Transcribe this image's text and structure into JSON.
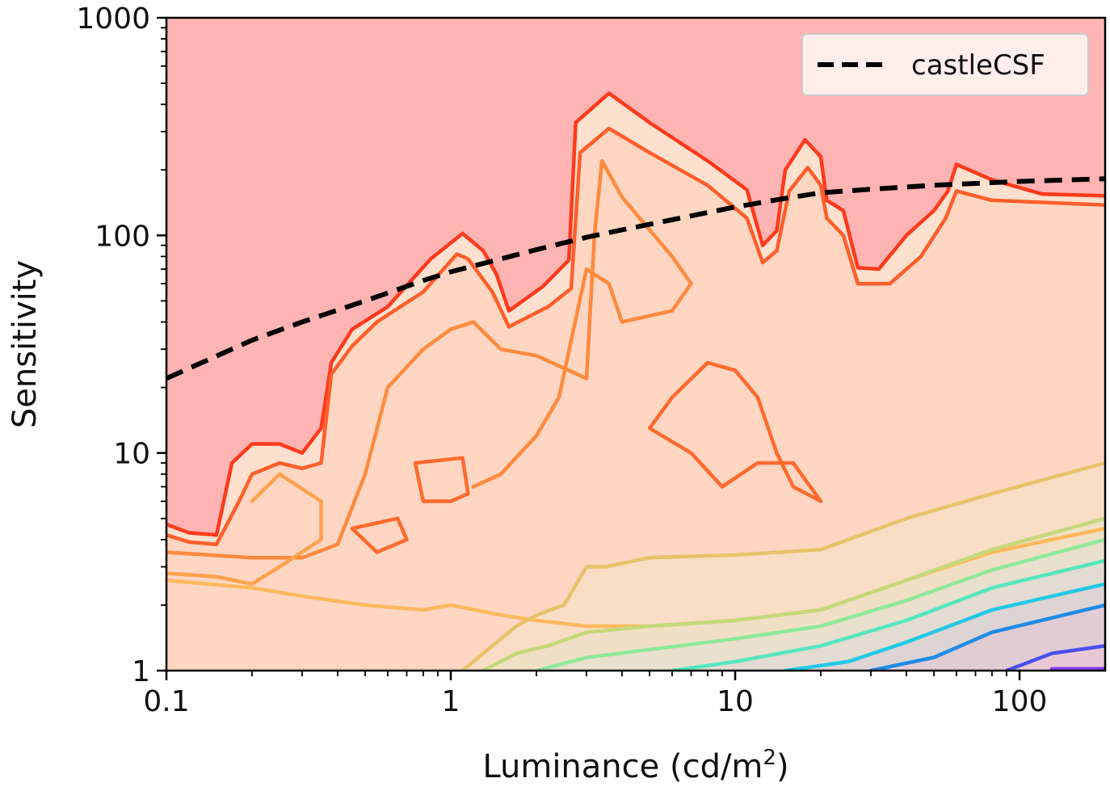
{
  "chart_data": {
    "type": "contour",
    "xlabel": "Luminance (cd/m",
    "xlabel_superscript": "2",
    "xlabel_suffix": ")",
    "ylabel": "Sensitivity",
    "xscale": "log",
    "yscale": "log",
    "xlim": [
      0.1,
      200
    ],
    "ylim": [
      1,
      1000
    ],
    "x_ticks": [
      {
        "value": 0.1,
        "label": "0.1"
      },
      {
        "value": 1,
        "label": "1"
      },
      {
        "value": 10,
        "label": "10"
      },
      {
        "value": 100,
        "label": "100"
      }
    ],
    "y_ticks": [
      {
        "value": 1,
        "label": "1"
      },
      {
        "value": 10,
        "label": "10"
      },
      {
        "value": 100,
        "label": "100"
      },
      {
        "value": 1000,
        "label": "1000"
      }
    ],
    "grid": false,
    "legend_position": "top-right",
    "series": [
      {
        "name": "castleCSF",
        "style": "dashed",
        "color": "#000000",
        "points": [
          [
            0.1,
            22
          ],
          [
            0.2,
            33
          ],
          [
            0.3,
            40
          ],
          [
            0.5,
            50
          ],
          [
            0.8,
            62
          ],
          [
            1,
            68
          ],
          [
            1.5,
            78
          ],
          [
            2,
            86
          ],
          [
            3,
            98
          ],
          [
            4,
            106
          ],
          [
            6,
            118
          ],
          [
            10,
            135
          ],
          [
            15,
            148
          ],
          [
            20,
            157
          ],
          [
            30,
            163
          ],
          [
            50,
            170
          ],
          [
            100,
            177
          ],
          [
            200,
            182
          ]
        ]
      }
    ],
    "contours": [
      {
        "color": "#ff3a1c",
        "points": [
          [
            0.1,
            4.7
          ],
          [
            0.12,
            4.3
          ],
          [
            0.15,
            4.2
          ],
          [
            0.17,
            9
          ],
          [
            0.2,
            11
          ],
          [
            0.25,
            11
          ],
          [
            0.3,
            10
          ],
          [
            0.35,
            13
          ],
          [
            0.38,
            26
          ],
          [
            0.45,
            37
          ],
          [
            0.6,
            47
          ],
          [
            0.85,
            78
          ],
          [
            1.1,
            102
          ],
          [
            1.3,
            85
          ],
          [
            1.45,
            66
          ],
          [
            1.6,
            45
          ],
          [
            2.1,
            58
          ],
          [
            2.6,
            77
          ],
          [
            2.75,
            330
          ],
          [
            3.6,
            450
          ],
          [
            5,
            330
          ],
          [
            8,
            220
          ],
          [
            11,
            162
          ],
          [
            12.5,
            90
          ],
          [
            14,
            105
          ],
          [
            15,
            200
          ],
          [
            17.6,
            275
          ],
          [
            20,
            230
          ],
          [
            21,
            145
          ],
          [
            24,
            130
          ],
          [
            27,
            71
          ],
          [
            32,
            70
          ],
          [
            40,
            100
          ],
          [
            50,
            130
          ],
          [
            56,
            160
          ],
          [
            60,
            212
          ],
          [
            80,
            180
          ],
          [
            120,
            155
          ],
          [
            200,
            152
          ]
        ]
      },
      {
        "color": "#ff5e2b",
        "points": [
          [
            0.1,
            4.2
          ],
          [
            0.12,
            3.9
          ],
          [
            0.15,
            3.8
          ],
          [
            0.18,
            6
          ],
          [
            0.2,
            8
          ],
          [
            0.25,
            9
          ],
          [
            0.3,
            8.5
          ],
          [
            0.35,
            9
          ],
          [
            0.38,
            23
          ],
          [
            0.45,
            31
          ],
          [
            0.55,
            40
          ],
          [
            0.8,
            55
          ],
          [
            1.05,
            82
          ],
          [
            1.15,
            78
          ],
          [
            1.4,
            55
          ],
          [
            1.6,
            38
          ],
          [
            2.2,
            47
          ],
          [
            2.65,
            57
          ],
          [
            2.85,
            240
          ],
          [
            3.6,
            310
          ],
          [
            5,
            240
          ],
          [
            8,
            170
          ],
          [
            11,
            120
          ],
          [
            12.5,
            75
          ],
          [
            14,
            85
          ],
          [
            15.5,
            160
          ],
          [
            18,
            205
          ],
          [
            20,
            170
          ],
          [
            21,
            120
          ],
          [
            24,
            100
          ],
          [
            27,
            60
          ],
          [
            35,
            60
          ],
          [
            45,
            80
          ],
          [
            55,
            120
          ],
          [
            60,
            160
          ],
          [
            80,
            145
          ],
          [
            200,
            138
          ]
        ]
      },
      {
        "color": "#ff8a3d",
        "points": [
          [
            0.1,
            3.5
          ],
          [
            0.2,
            3.3
          ],
          [
            0.3,
            3.3
          ],
          [
            0.4,
            3.8
          ],
          [
            0.5,
            8
          ],
          [
            0.6,
            20
          ],
          [
            0.8,
            30
          ],
          [
            1,
            37
          ],
          [
            1.2,
            40
          ],
          [
            1.5,
            30
          ],
          [
            2,
            28
          ],
          [
            3,
            22
          ],
          [
            3.2,
            100
          ],
          [
            3.4,
            220
          ],
          [
            4,
            150
          ],
          [
            6,
            80
          ],
          [
            7,
            60
          ],
          [
            6,
            45
          ],
          [
            4,
            40
          ],
          [
            3.6,
            60
          ],
          [
            3,
            70
          ],
          [
            2.4,
            18
          ],
          [
            2,
            12
          ],
          [
            1.5,
            8
          ],
          [
            1.2,
            7
          ]
        ]
      },
      {
        "color": "#ff6a2e",
        "points": [
          [
            6,
            18
          ],
          [
            8,
            26
          ],
          [
            10,
            24
          ],
          [
            12,
            18
          ],
          [
            14,
            10
          ],
          [
            16,
            7
          ],
          [
            20,
            6
          ],
          [
            16,
            9
          ],
          [
            12,
            9
          ],
          [
            9,
            7
          ],
          [
            7,
            10
          ],
          [
            5,
            13
          ],
          [
            6,
            18
          ]
        ]
      },
      {
        "color": "#ff6a2e",
        "points": [
          [
            0.75,
            9
          ],
          [
            1.1,
            9.5
          ],
          [
            1.15,
            6.5
          ],
          [
            1,
            6
          ],
          [
            0.8,
            6
          ],
          [
            0.75,
            9
          ]
        ]
      },
      {
        "color": "#ff6a2e",
        "points": [
          [
            0.45,
            4.5
          ],
          [
            0.65,
            5
          ],
          [
            0.7,
            4
          ],
          [
            0.55,
            3.5
          ],
          [
            0.45,
            4.5
          ]
        ]
      },
      {
        "color": "#ffa24d",
        "points": [
          [
            0.2,
            6
          ],
          [
            0.25,
            8
          ],
          [
            0.35,
            6
          ],
          [
            0.35,
            4
          ],
          [
            0.25,
            3
          ],
          [
            0.2,
            2.5
          ],
          [
            0.15,
            2.7
          ],
          [
            0.1,
            2.8
          ]
        ]
      },
      {
        "color": "#ffb85c",
        "points": [
          [
            0.1,
            2.6
          ],
          [
            0.2,
            2.4
          ],
          [
            0.3,
            2.2
          ],
          [
            0.5,
            2
          ],
          [
            0.8,
            1.9
          ],
          [
            1,
            2
          ],
          [
            1.5,
            1.8
          ],
          [
            2,
            1.7
          ],
          [
            3,
            1.6
          ],
          [
            5,
            1.6
          ],
          [
            10,
            1.7
          ],
          [
            20,
            1.9
          ],
          [
            40,
            2.6
          ],
          [
            80,
            3.5
          ],
          [
            200,
            4.5
          ]
        ]
      },
      {
        "color": "#e8c26a",
        "points": [
          [
            1.1,
            1
          ],
          [
            1.4,
            1.3
          ],
          [
            1.7,
            1.6
          ],
          [
            2,
            1.8
          ],
          [
            2.5,
            2
          ],
          [
            3,
            3
          ],
          [
            3.5,
            3
          ],
          [
            5,
            3.3
          ],
          [
            10,
            3.4
          ],
          [
            20,
            3.6
          ],
          [
            40,
            5
          ],
          [
            80,
            6.5
          ],
          [
            200,
            9
          ]
        ]
      },
      {
        "color": "#c4d97a",
        "points": [
          [
            1.3,
            1
          ],
          [
            1.7,
            1.2
          ],
          [
            2.2,
            1.3
          ],
          [
            3,
            1.5
          ],
          [
            5,
            1.6
          ],
          [
            10,
            1.7
          ],
          [
            20,
            1.9
          ],
          [
            40,
            2.6
          ],
          [
            80,
            3.6
          ],
          [
            200,
            5
          ]
        ]
      },
      {
        "color": "#8ee89b",
        "points": [
          [
            2,
            1
          ],
          [
            3,
            1.15
          ],
          [
            5,
            1.25
          ],
          [
            10,
            1.4
          ],
          [
            20,
            1.6
          ],
          [
            40,
            2.1
          ],
          [
            80,
            2.9
          ],
          [
            200,
            4
          ]
        ]
      },
      {
        "color": "#55e6c0",
        "points": [
          [
            6,
            1
          ],
          [
            10,
            1.1
          ],
          [
            20,
            1.3
          ],
          [
            40,
            1.7
          ],
          [
            80,
            2.4
          ],
          [
            200,
            3.2
          ]
        ]
      },
      {
        "color": "#22c8e6",
        "points": [
          [
            15,
            1
          ],
          [
            25,
            1.1
          ],
          [
            40,
            1.35
          ],
          [
            80,
            1.9
          ],
          [
            200,
            2.5
          ]
        ]
      },
      {
        "color": "#1e8ce6",
        "points": [
          [
            30,
            1
          ],
          [
            50,
            1.15
          ],
          [
            80,
            1.5
          ],
          [
            200,
            2
          ]
        ]
      },
      {
        "color": "#4a4ff0",
        "points": [
          [
            90,
            1
          ],
          [
            130,
            1.2
          ],
          [
            200,
            1.3
          ]
        ]
      },
      {
        "color": "#8a3cf0",
        "points": [
          [
            130,
            1.02
          ],
          [
            200,
            1.02
          ]
        ]
      }
    ],
    "fill_bands": [
      {
        "color": "#ffb4b4",
        "description_level": "top"
      },
      {
        "color": "#ffc6b6"
      },
      {
        "color": "#ffd8c6"
      },
      {
        "color": "#f7ecd2"
      },
      {
        "color": "#e6f5d8"
      },
      {
        "color": "#cdf5e4"
      },
      {
        "color": "#b6e8f4"
      },
      {
        "color": "#bcd4f6"
      },
      {
        "color": "#cfc3f8"
      }
    ],
    "legend": [
      {
        "label": "castleCSF",
        "style": "dashed",
        "color": "#000000"
      }
    ]
  }
}
